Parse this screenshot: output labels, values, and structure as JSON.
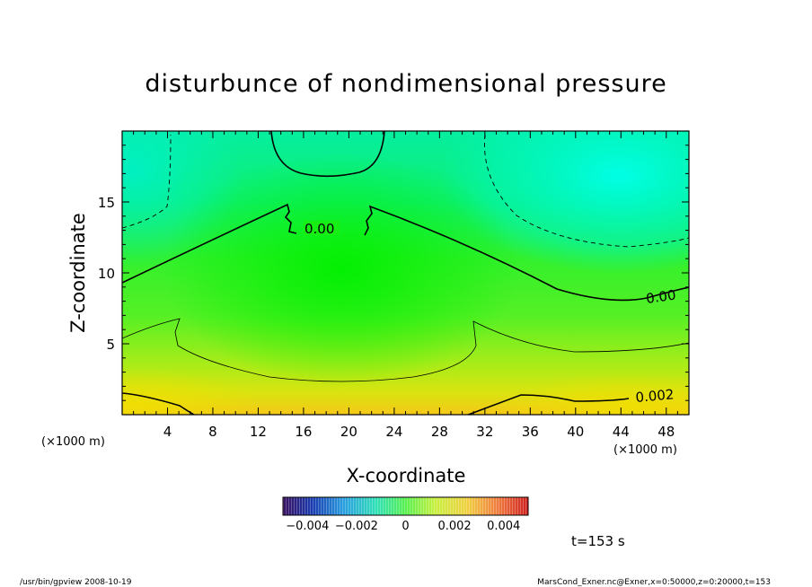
{
  "chart_data": {
    "type": "heatmap",
    "title": "disturbunce of nondimensional pressure",
    "xlabel": "X-coordinate",
    "ylabel": "Z-coordinate",
    "x_unit": "(×1000 m)",
    "z_unit": "(×1000 m)",
    "xlim": [
      0,
      50
    ],
    "ylim": [
      0,
      20
    ],
    "x_ticks": [
      "4",
      "8",
      "12",
      "16",
      "20",
      "24",
      "28",
      "32",
      "36",
      "40",
      "44",
      "48"
    ],
    "y_ticks": [
      "5",
      "10",
      "15"
    ],
    "colorbar": {
      "range": [
        -0.005,
        0.005
      ],
      "tick_labels": [
        "−0.004",
        "−0.002",
        "0",
        "0.002",
        "0.004"
      ]
    },
    "contour_labels": [
      "0.00",
      "0.00",
      "0.002"
    ],
    "time_label": "t=153 s",
    "footer_left": "/usr/bin/gpview   2008-10-19",
    "footer_right": "MarsCond_Exner.nc@Exner,x=0:50000,z=0:20000,t=153"
  }
}
